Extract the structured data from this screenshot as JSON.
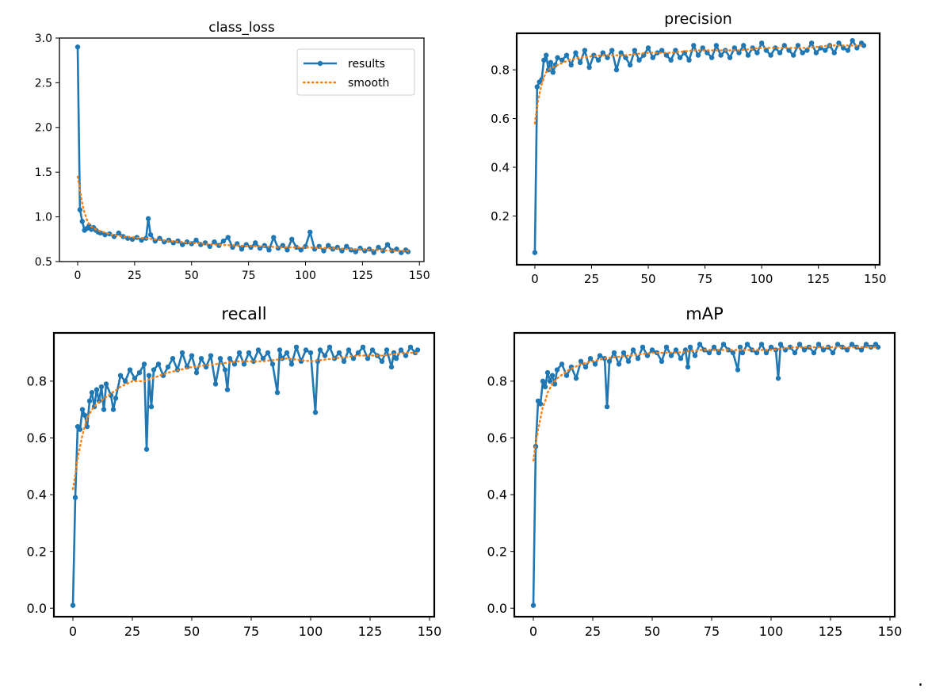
{
  "colors": {
    "results": "#1f77b4",
    "smooth": "#ff7f0e",
    "axis": "#000000"
  },
  "trailing_mark": ".",
  "chart_data": [
    {
      "type": "line",
      "title": "class_loss",
      "xlabel": "",
      "ylabel": "",
      "xlim": [
        -8,
        152
      ],
      "ylim": [
        0.5,
        3.0
      ],
      "xticks": [
        0,
        25,
        50,
        75,
        100,
        125,
        150
      ],
      "yticks": [
        0.5,
        1.0,
        1.5,
        2.0,
        2.5,
        3.0
      ],
      "ytick_labels": [
        "0.5",
        "1.0",
        "1.5",
        "2.0",
        "2.5",
        "3.0"
      ],
      "grid": false,
      "legend": "top-right",
      "legend_entries": [
        "results",
        "smooth"
      ],
      "series": [
        {
          "name": "results",
          "style": "line-dot",
          "x": [
            0,
            1,
            2,
            3,
            4,
            5,
            6,
            7,
            8,
            9,
            10,
            12,
            14,
            16,
            18,
            20,
            22,
            24,
            26,
            28,
            30,
            31,
            32,
            34,
            36,
            38,
            40,
            42,
            44,
            46,
            48,
            50,
            52,
            54,
            56,
            58,
            60,
            62,
            64,
            66,
            68,
            70,
            72,
            74,
            76,
            78,
            80,
            82,
            84,
            86,
            88,
            90,
            92,
            94,
            96,
            98,
            100,
            102,
            104,
            106,
            108,
            110,
            112,
            114,
            116,
            118,
            120,
            122,
            124,
            126,
            128,
            130,
            132,
            134,
            136,
            138,
            140,
            142,
            144,
            145
          ],
          "y": [
            2.9,
            1.08,
            0.95,
            0.85,
            0.87,
            0.9,
            0.86,
            0.88,
            0.85,
            0.83,
            0.82,
            0.8,
            0.81,
            0.78,
            0.82,
            0.78,
            0.76,
            0.75,
            0.77,
            0.74,
            0.76,
            0.98,
            0.8,
            0.73,
            0.76,
            0.72,
            0.74,
            0.71,
            0.73,
            0.69,
            0.72,
            0.7,
            0.74,
            0.69,
            0.71,
            0.67,
            0.72,
            0.68,
            0.73,
            0.77,
            0.66,
            0.7,
            0.64,
            0.69,
            0.66,
            0.71,
            0.65,
            0.68,
            0.63,
            0.77,
            0.65,
            0.68,
            0.63,
            0.75,
            0.66,
            0.63,
            0.67,
            0.83,
            0.64,
            0.67,
            0.62,
            0.68,
            0.64,
            0.66,
            0.62,
            0.67,
            0.63,
            0.61,
            0.65,
            0.62,
            0.64,
            0.6,
            0.66,
            0.62,
            0.69,
            0.62,
            0.64,
            0.6,
            0.63,
            0.61
          ]
        },
        {
          "name": "smooth",
          "style": "dotted",
          "x": [
            0,
            1,
            2,
            3,
            4,
            5,
            6,
            8,
            10,
            15,
            20,
            30,
            40,
            50,
            60,
            70,
            80,
            90,
            100,
            110,
            120,
            130,
            140,
            145
          ],
          "y": [
            1.45,
            1.3,
            1.15,
            1.05,
            0.97,
            0.92,
            0.89,
            0.86,
            0.84,
            0.8,
            0.78,
            0.76,
            0.73,
            0.71,
            0.69,
            0.68,
            0.67,
            0.66,
            0.66,
            0.65,
            0.64,
            0.63,
            0.62,
            0.62
          ]
        }
      ]
    },
    {
      "type": "line",
      "title": "precision",
      "xlabel": "",
      "ylabel": "",
      "xlim": [
        -8,
        152
      ],
      "ylim": [
        0.0,
        0.95
      ],
      "xticks": [
        0,
        25,
        50,
        75,
        100,
        125,
        150
      ],
      "yticks": [
        0.2,
        0.4,
        0.6,
        0.8
      ],
      "ytick_labels": [
        "0.2",
        "0.4",
        "0.6",
        "0.8"
      ],
      "grid": false,
      "legend": "none",
      "series": [
        {
          "name": "results",
          "style": "line-dot",
          "x": [
            0,
            1,
            2,
            3,
            4,
            5,
            6,
            7,
            8,
            9,
            10,
            12,
            14,
            16,
            18,
            20,
            22,
            24,
            26,
            28,
            30,
            32,
            34,
            36,
            38,
            40,
            42,
            44,
            46,
            48,
            50,
            52,
            54,
            56,
            58,
            60,
            62,
            64,
            66,
            68,
            70,
            72,
            74,
            76,
            78,
            80,
            82,
            84,
            86,
            88,
            90,
            92,
            94,
            96,
            98,
            100,
            102,
            104,
            106,
            108,
            110,
            112,
            114,
            116,
            118,
            120,
            122,
            124,
            126,
            128,
            130,
            132,
            134,
            136,
            138,
            140,
            142,
            144,
            145
          ],
          "y": [
            0.05,
            0.73,
            0.75,
            0.76,
            0.84,
            0.86,
            0.8,
            0.83,
            0.79,
            0.82,
            0.85,
            0.84,
            0.86,
            0.82,
            0.87,
            0.83,
            0.88,
            0.81,
            0.86,
            0.84,
            0.87,
            0.85,
            0.88,
            0.8,
            0.87,
            0.85,
            0.82,
            0.88,
            0.84,
            0.86,
            0.89,
            0.85,
            0.87,
            0.88,
            0.86,
            0.84,
            0.88,
            0.85,
            0.87,
            0.84,
            0.9,
            0.86,
            0.89,
            0.87,
            0.85,
            0.9,
            0.86,
            0.88,
            0.85,
            0.89,
            0.87,
            0.9,
            0.86,
            0.89,
            0.87,
            0.91,
            0.88,
            0.86,
            0.89,
            0.87,
            0.9,
            0.88,
            0.86,
            0.9,
            0.87,
            0.88,
            0.91,
            0.87,
            0.89,
            0.88,
            0.9,
            0.87,
            0.91,
            0.89,
            0.88,
            0.92,
            0.89,
            0.91,
            0.9
          ]
        },
        {
          "name": "smooth",
          "style": "dotted",
          "x": [
            0,
            1,
            2,
            3,
            4,
            5,
            6,
            8,
            10,
            15,
            20,
            30,
            40,
            50,
            60,
            70,
            80,
            90,
            100,
            110,
            120,
            130,
            140,
            145
          ],
          "y": [
            0.58,
            0.65,
            0.7,
            0.74,
            0.77,
            0.79,
            0.8,
            0.81,
            0.82,
            0.84,
            0.85,
            0.86,
            0.86,
            0.87,
            0.87,
            0.88,
            0.88,
            0.88,
            0.89,
            0.89,
            0.89,
            0.9,
            0.9,
            0.9
          ]
        }
      ]
    },
    {
      "type": "line",
      "title": "recall",
      "xlabel": "",
      "ylabel": "",
      "xlim": [
        -8,
        152
      ],
      "ylim": [
        -0.03,
        0.97
      ],
      "xticks": [
        0,
        25,
        50,
        75,
        100,
        125,
        150
      ],
      "yticks": [
        0.0,
        0.2,
        0.4,
        0.6,
        0.8
      ],
      "ytick_labels": [
        "0.0",
        "0.2",
        "0.4",
        "0.6",
        "0.8"
      ],
      "grid": false,
      "legend": "none",
      "series": [
        {
          "name": "results",
          "style": "line-dot",
          "x": [
            0,
            1,
            2,
            3,
            4,
            5,
            6,
            7,
            8,
            9,
            10,
            11,
            12,
            13,
            14,
            16,
            17,
            18,
            20,
            22,
            24,
            26,
            28,
            30,
            31,
            32,
            33,
            34,
            36,
            38,
            40,
            42,
            44,
            46,
            48,
            50,
            52,
            54,
            56,
            58,
            60,
            62,
            64,
            65,
            66,
            68,
            70,
            72,
            74,
            76,
            78,
            80,
            82,
            84,
            86,
            87,
            88,
            90,
            92,
            94,
            96,
            98,
            100,
            102,
            103,
            104,
            106,
            108,
            110,
            112,
            114,
            116,
            118,
            120,
            122,
            124,
            126,
            128,
            130,
            132,
            134,
            135,
            136,
            138,
            140,
            142,
            144,
            145
          ],
          "y": [
            0.01,
            0.39,
            0.64,
            0.63,
            0.7,
            0.68,
            0.64,
            0.73,
            0.76,
            0.71,
            0.77,
            0.73,
            0.78,
            0.7,
            0.79,
            0.75,
            0.7,
            0.74,
            0.82,
            0.8,
            0.84,
            0.81,
            0.83,
            0.86,
            0.56,
            0.82,
            0.71,
            0.84,
            0.86,
            0.82,
            0.85,
            0.88,
            0.84,
            0.9,
            0.85,
            0.89,
            0.83,
            0.88,
            0.85,
            0.89,
            0.79,
            0.88,
            0.84,
            0.77,
            0.88,
            0.86,
            0.9,
            0.86,
            0.9,
            0.87,
            0.91,
            0.88,
            0.9,
            0.86,
            0.76,
            0.91,
            0.88,
            0.9,
            0.86,
            0.92,
            0.87,
            0.91,
            0.9,
            0.69,
            0.87,
            0.91,
            0.89,
            0.92,
            0.88,
            0.9,
            0.87,
            0.91,
            0.88,
            0.9,
            0.92,
            0.88,
            0.91,
            0.89,
            0.87,
            0.91,
            0.85,
            0.9,
            0.88,
            0.91,
            0.89,
            0.92,
            0.9,
            0.91
          ]
        },
        {
          "name": "smooth",
          "style": "dotted",
          "x": [
            0,
            1,
            2,
            3,
            4,
            5,
            6,
            8,
            10,
            15,
            20,
            25,
            30,
            40,
            50,
            60,
            70,
            80,
            90,
            100,
            110,
            120,
            130,
            140,
            145
          ],
          "y": [
            0.42,
            0.47,
            0.53,
            0.57,
            0.61,
            0.64,
            0.67,
            0.7,
            0.72,
            0.75,
            0.78,
            0.8,
            0.8,
            0.83,
            0.85,
            0.86,
            0.87,
            0.87,
            0.88,
            0.87,
            0.88,
            0.89,
            0.89,
            0.9,
            0.9
          ]
        }
      ]
    },
    {
      "type": "line",
      "title": "mAP",
      "xlabel": "",
      "ylabel": "",
      "xlim": [
        -8,
        152
      ],
      "ylim": [
        -0.03,
        0.97
      ],
      "xticks": [
        0,
        25,
        50,
        75,
        100,
        125,
        150
      ],
      "yticks": [
        0.0,
        0.2,
        0.4,
        0.6,
        0.8
      ],
      "ytick_labels": [
        "0.0",
        "0.2",
        "0.4",
        "0.6",
        "0.8"
      ],
      "grid": false,
      "legend": "none",
      "series": [
        {
          "name": "results",
          "style": "line-dot",
          "x": [
            0,
            1,
            2,
            3,
            4,
            5,
            6,
            7,
            8,
            9,
            10,
            12,
            14,
            16,
            18,
            20,
            22,
            24,
            26,
            28,
            30,
            31,
            32,
            34,
            36,
            38,
            40,
            42,
            44,
            46,
            48,
            50,
            52,
            54,
            56,
            58,
            60,
            62,
            64,
            65,
            66,
            68,
            70,
            72,
            74,
            76,
            78,
            80,
            82,
            84,
            86,
            87,
            88,
            90,
            92,
            94,
            96,
            98,
            100,
            102,
            103,
            104,
            106,
            108,
            110,
            112,
            114,
            116,
            118,
            120,
            122,
            124,
            126,
            128,
            130,
            132,
            134,
            136,
            138,
            140,
            142,
            144,
            145
          ],
          "y": [
            0.01,
            0.57,
            0.73,
            0.72,
            0.8,
            0.78,
            0.83,
            0.8,
            0.82,
            0.79,
            0.84,
            0.86,
            0.82,
            0.85,
            0.81,
            0.87,
            0.85,
            0.88,
            0.86,
            0.89,
            0.88,
            0.71,
            0.87,
            0.9,
            0.86,
            0.9,
            0.87,
            0.91,
            0.88,
            0.92,
            0.89,
            0.91,
            0.9,
            0.87,
            0.92,
            0.89,
            0.91,
            0.88,
            0.91,
            0.85,
            0.92,
            0.89,
            0.93,
            0.91,
            0.9,
            0.92,
            0.9,
            0.93,
            0.91,
            0.9,
            0.84,
            0.92,
            0.9,
            0.93,
            0.91,
            0.9,
            0.93,
            0.9,
            0.92,
            0.91,
            0.81,
            0.93,
            0.91,
            0.92,
            0.9,
            0.93,
            0.91,
            0.92,
            0.9,
            0.93,
            0.91,
            0.92,
            0.9,
            0.93,
            0.92,
            0.91,
            0.93,
            0.92,
            0.91,
            0.93,
            0.92,
            0.93,
            0.92
          ]
        },
        {
          "name": "smooth",
          "style": "dotted",
          "x": [
            0,
            1,
            2,
            3,
            4,
            5,
            6,
            8,
            10,
            15,
            20,
            25,
            30,
            40,
            50,
            60,
            70,
            80,
            90,
            100,
            110,
            120,
            130,
            140,
            145
          ],
          "y": [
            0.52,
            0.58,
            0.63,
            0.67,
            0.71,
            0.73,
            0.76,
            0.79,
            0.81,
            0.84,
            0.86,
            0.87,
            0.88,
            0.89,
            0.9,
            0.9,
            0.91,
            0.91,
            0.91,
            0.91,
            0.92,
            0.92,
            0.92,
            0.92,
            0.92
          ]
        }
      ]
    }
  ]
}
